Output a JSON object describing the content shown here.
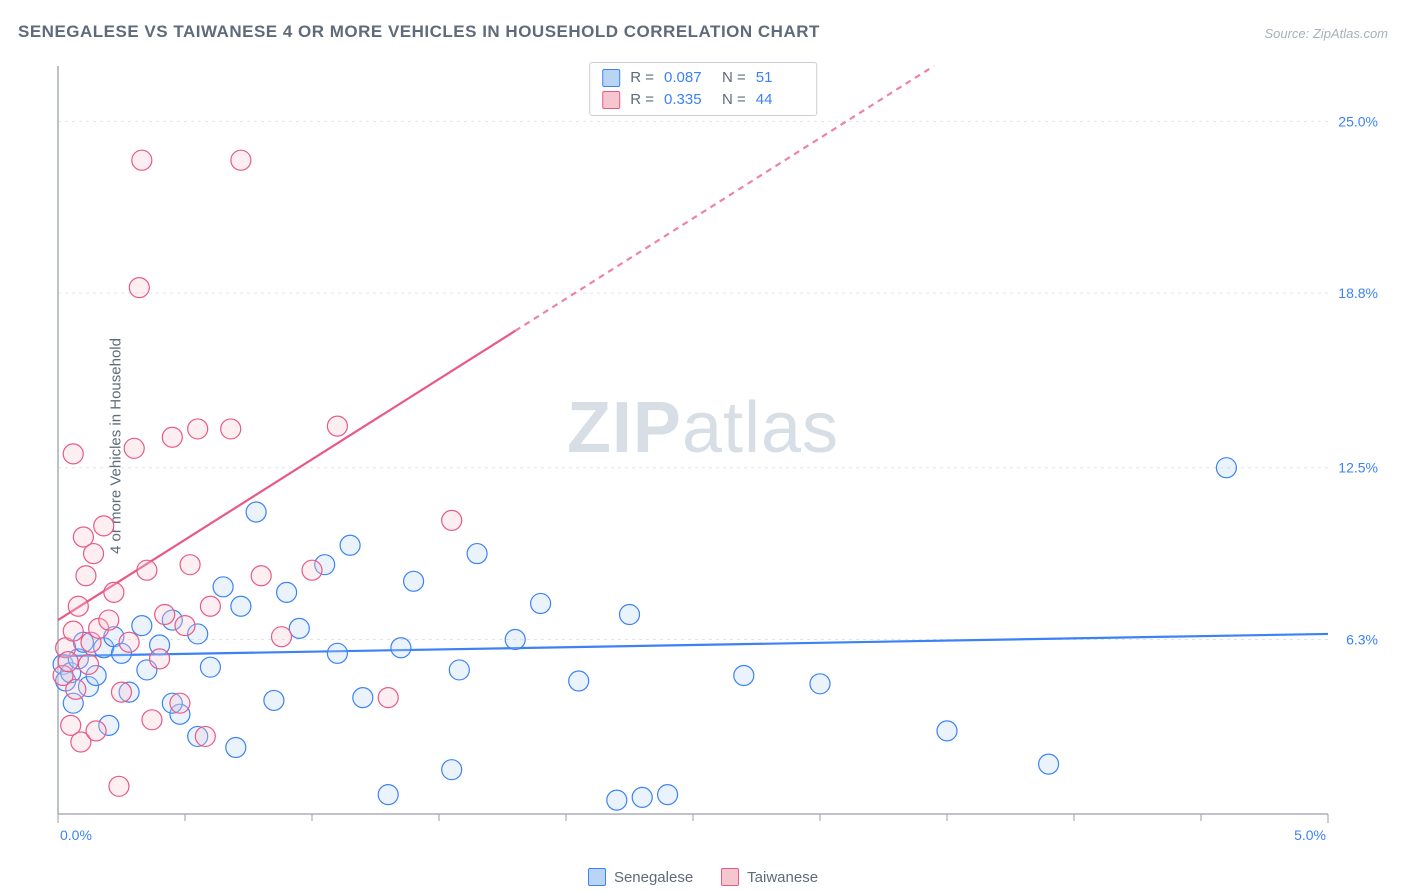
{
  "title": "SENEGALESE VS TAIWANESE 4 OR MORE VEHICLES IN HOUSEHOLD CORRELATION CHART",
  "source": "Source: ZipAtlas.com",
  "ylabel": "4 or more Vehicles in Household",
  "watermark_left": "ZIP",
  "watermark_right": "atlas",
  "chart": {
    "type": "scatter",
    "background_color": "#ffffff",
    "grid_color": "#e0e4e9",
    "axis_color": "#9aa1ab",
    "tick_font_size": 14,
    "tick_color": "#3b82f6",
    "xlim": [
      0.0,
      5.0
    ],
    "ylim": [
      0.0,
      27.0
    ],
    "x_ticks": [
      0.0,
      5.0
    ],
    "x_tick_labels": [
      "0.0%",
      "5.0%"
    ],
    "x_minor_ticks": [
      0.5,
      1.0,
      1.5,
      2.0,
      2.5,
      3.0,
      3.5,
      4.0,
      4.5
    ],
    "y_ticks": [
      6.3,
      12.5,
      18.8,
      25.0
    ],
    "y_tick_labels": [
      "6.3%",
      "12.5%",
      "18.8%",
      "25.0%"
    ],
    "marker_radius": 10,
    "marker_stroke_width": 1.2,
    "marker_fill_opacity": 0.3,
    "line_width": 2.2,
    "dash_pattern": "6,5"
  },
  "legend_top": {
    "rows": [
      {
        "swatch_fill": "#b9d4f5",
        "swatch_stroke": "#3b82f6",
        "r_label": "R =",
        "r_value": "0.087",
        "n_label": "N =",
        "n_value": "51"
      },
      {
        "swatch_fill": "#f6c6cf",
        "swatch_stroke": "#e75a88",
        "r_label": "R =",
        "r_value": "0.335",
        "n_label": "N =",
        "n_value": "44"
      }
    ]
  },
  "legend_bottom": {
    "items": [
      {
        "label": "Senegalese",
        "fill": "#b9d4f5",
        "stroke": "#3b82f6"
      },
      {
        "label": "Taiwanese",
        "fill": "#f6c6cf",
        "stroke": "#e75a88"
      }
    ]
  },
  "series": [
    {
      "name": "Senegalese",
      "color_stroke": "#3b82f6",
      "color_fill": "#b9d4f5",
      "trend": {
        "y_at_xmin": 5.7,
        "y_at_xmax": 6.5,
        "solid_until_x": 5.0
      },
      "points": [
        [
          0.02,
          5.4
        ],
        [
          0.03,
          4.8
        ],
        [
          0.05,
          5.1
        ],
        [
          0.06,
          4.0
        ],
        [
          0.08,
          5.6
        ],
        [
          0.1,
          6.2
        ],
        [
          0.12,
          4.6
        ],
        [
          0.15,
          5.0
        ],
        [
          0.18,
          6.0
        ],
        [
          0.2,
          3.2
        ],
        [
          0.22,
          6.4
        ],
        [
          0.25,
          5.8
        ],
        [
          0.28,
          4.4
        ],
        [
          0.33,
          6.8
        ],
        [
          0.35,
          5.2
        ],
        [
          0.4,
          6.1
        ],
        [
          0.45,
          7.0
        ],
        [
          0.48,
          3.6
        ],
        [
          0.55,
          6.5
        ],
        [
          0.6,
          5.3
        ],
        [
          0.65,
          8.2
        ],
        [
          0.7,
          2.4
        ],
        [
          0.72,
          7.5
        ],
        [
          0.78,
          10.9
        ],
        [
          0.85,
          4.1
        ],
        [
          0.9,
          8.0
        ],
        [
          0.95,
          6.7
        ],
        [
          1.05,
          9.0
        ],
        [
          1.1,
          5.8
        ],
        [
          1.15,
          9.7
        ],
        [
          1.2,
          4.2
        ],
        [
          1.3,
          0.7
        ],
        [
          1.35,
          6.0
        ],
        [
          1.4,
          8.4
        ],
        [
          1.55,
          1.6
        ],
        [
          1.58,
          5.2
        ],
        [
          1.65,
          9.4
        ],
        [
          1.8,
          6.3
        ],
        [
          1.9,
          7.6
        ],
        [
          2.05,
          4.8
        ],
        [
          2.2,
          0.5
        ],
        [
          2.25,
          7.2
        ],
        [
          2.3,
          0.6
        ],
        [
          2.4,
          0.7
        ],
        [
          2.7,
          5.0
        ],
        [
          3.0,
          4.7
        ],
        [
          3.5,
          3.0
        ],
        [
          3.9,
          1.8
        ],
        [
          4.6,
          12.5
        ],
        [
          0.55,
          2.8
        ],
        [
          0.45,
          4.0
        ]
      ]
    },
    {
      "name": "Taiwanese",
      "color_stroke": "#e75a88",
      "color_fill": "#f6c6cf",
      "trend": {
        "y_at_xmin": 7.0,
        "y_at_xmax": 36.0,
        "solid_until_x": 1.8
      },
      "points": [
        [
          0.02,
          5.0
        ],
        [
          0.03,
          6.0
        ],
        [
          0.04,
          5.5
        ],
        [
          0.05,
          3.2
        ],
        [
          0.06,
          6.6
        ],
        [
          0.07,
          4.5
        ],
        [
          0.08,
          7.5
        ],
        [
          0.09,
          2.6
        ],
        [
          0.1,
          10.0
        ],
        [
          0.11,
          8.6
        ],
        [
          0.12,
          5.4
        ],
        [
          0.13,
          6.2
        ],
        [
          0.14,
          9.4
        ],
        [
          0.15,
          3.0
        ],
        [
          0.16,
          6.7
        ],
        [
          0.18,
          10.4
        ],
        [
          0.2,
          7.0
        ],
        [
          0.22,
          8.0
        ],
        [
          0.24,
          1.0
        ],
        [
          0.25,
          4.4
        ],
        [
          0.28,
          6.2
        ],
        [
          0.3,
          13.2
        ],
        [
          0.32,
          19.0
        ],
        [
          0.33,
          23.6
        ],
        [
          0.35,
          8.8
        ],
        [
          0.37,
          3.4
        ],
        [
          0.4,
          5.6
        ],
        [
          0.42,
          7.2
        ],
        [
          0.45,
          13.6
        ],
        [
          0.48,
          4.0
        ],
        [
          0.5,
          6.8
        ],
        [
          0.52,
          9.0
        ],
        [
          0.55,
          13.9
        ],
        [
          0.58,
          2.8
        ],
        [
          0.6,
          7.5
        ],
        [
          0.68,
          13.9
        ],
        [
          0.72,
          23.6
        ],
        [
          0.8,
          8.6
        ],
        [
          0.88,
          6.4
        ],
        [
          1.0,
          8.8
        ],
        [
          1.1,
          14.0
        ],
        [
          1.3,
          4.2
        ],
        [
          1.55,
          10.6
        ],
        [
          0.06,
          13.0
        ]
      ]
    }
  ]
}
